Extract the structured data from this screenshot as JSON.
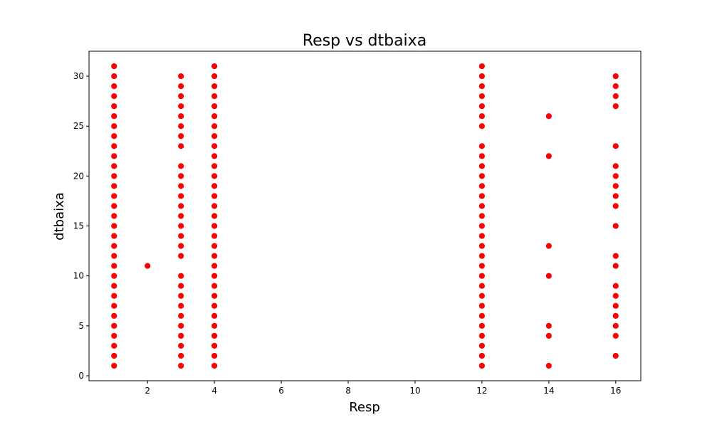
{
  "chart_data": {
    "type": "scatter",
    "title": "Resp vs dtbaixa",
    "xlabel": "Resp",
    "ylabel": "dtbaixa",
    "xlim": [
      0.25,
      16.75
    ],
    "ylim": [
      -0.5,
      32.5
    ],
    "x_ticks": [
      2,
      4,
      6,
      8,
      10,
      12,
      14,
      16
    ],
    "y_ticks": [
      0,
      5,
      10,
      15,
      20,
      25,
      30
    ],
    "grid": false,
    "legend": "none",
    "marker_color": "#ff0000",
    "marker_edge_color": "#ffffff",
    "points": [
      {
        "x": 1,
        "y": 1
      },
      {
        "x": 1,
        "y": 2
      },
      {
        "x": 1,
        "y": 3
      },
      {
        "x": 1,
        "y": 4
      },
      {
        "x": 1,
        "y": 5
      },
      {
        "x": 1,
        "y": 6
      },
      {
        "x": 1,
        "y": 7
      },
      {
        "x": 1,
        "y": 8
      },
      {
        "x": 1,
        "y": 9
      },
      {
        "x": 1,
        "y": 10
      },
      {
        "x": 1,
        "y": 11
      },
      {
        "x": 1,
        "y": 12
      },
      {
        "x": 1,
        "y": 13
      },
      {
        "x": 1,
        "y": 14
      },
      {
        "x": 1,
        "y": 15
      },
      {
        "x": 1,
        "y": 16
      },
      {
        "x": 1,
        "y": 17
      },
      {
        "x": 1,
        "y": 18
      },
      {
        "x": 1,
        "y": 19
      },
      {
        "x": 1,
        "y": 20
      },
      {
        "x": 1,
        "y": 21
      },
      {
        "x": 1,
        "y": 22
      },
      {
        "x": 1,
        "y": 23
      },
      {
        "x": 1,
        "y": 24
      },
      {
        "x": 1,
        "y": 25
      },
      {
        "x": 1,
        "y": 26
      },
      {
        "x": 1,
        "y": 27
      },
      {
        "x": 1,
        "y": 28
      },
      {
        "x": 1,
        "y": 29
      },
      {
        "x": 1,
        "y": 30
      },
      {
        "x": 1,
        "y": 31
      },
      {
        "x": 2,
        "y": 11
      },
      {
        "x": 3,
        "y": 1
      },
      {
        "x": 3,
        "y": 2
      },
      {
        "x": 3,
        "y": 3
      },
      {
        "x": 3,
        "y": 4
      },
      {
        "x": 3,
        "y": 5
      },
      {
        "x": 3,
        "y": 6
      },
      {
        "x": 3,
        "y": 7
      },
      {
        "x": 3,
        "y": 8
      },
      {
        "x": 3,
        "y": 9
      },
      {
        "x": 3,
        "y": 10
      },
      {
        "x": 3,
        "y": 12
      },
      {
        "x": 3,
        "y": 13
      },
      {
        "x": 3,
        "y": 14
      },
      {
        "x": 3,
        "y": 15
      },
      {
        "x": 3,
        "y": 16
      },
      {
        "x": 3,
        "y": 17
      },
      {
        "x": 3,
        "y": 18
      },
      {
        "x": 3,
        "y": 19
      },
      {
        "x": 3,
        "y": 20
      },
      {
        "x": 3,
        "y": 21
      },
      {
        "x": 3,
        "y": 23
      },
      {
        "x": 3,
        "y": 24
      },
      {
        "x": 3,
        "y": 25
      },
      {
        "x": 3,
        "y": 26
      },
      {
        "x": 3,
        "y": 27
      },
      {
        "x": 3,
        "y": 28
      },
      {
        "x": 3,
        "y": 29
      },
      {
        "x": 3,
        "y": 30
      },
      {
        "x": 4,
        "y": 1
      },
      {
        "x": 4,
        "y": 2
      },
      {
        "x": 4,
        "y": 3
      },
      {
        "x": 4,
        "y": 4
      },
      {
        "x": 4,
        "y": 5
      },
      {
        "x": 4,
        "y": 6
      },
      {
        "x": 4,
        "y": 7
      },
      {
        "x": 4,
        "y": 8
      },
      {
        "x": 4,
        "y": 9
      },
      {
        "x": 4,
        "y": 10
      },
      {
        "x": 4,
        "y": 11
      },
      {
        "x": 4,
        "y": 12
      },
      {
        "x": 4,
        "y": 13
      },
      {
        "x": 4,
        "y": 14
      },
      {
        "x": 4,
        "y": 15
      },
      {
        "x": 4,
        "y": 16
      },
      {
        "x": 4,
        "y": 17
      },
      {
        "x": 4,
        "y": 18
      },
      {
        "x": 4,
        "y": 19
      },
      {
        "x": 4,
        "y": 20
      },
      {
        "x": 4,
        "y": 21
      },
      {
        "x": 4,
        "y": 22
      },
      {
        "x": 4,
        "y": 23
      },
      {
        "x": 4,
        "y": 24
      },
      {
        "x": 4,
        "y": 25
      },
      {
        "x": 4,
        "y": 26
      },
      {
        "x": 4,
        "y": 27
      },
      {
        "x": 4,
        "y": 28
      },
      {
        "x": 4,
        "y": 29
      },
      {
        "x": 4,
        "y": 30
      },
      {
        "x": 4,
        "y": 31
      },
      {
        "x": 12,
        "y": 1
      },
      {
        "x": 12,
        "y": 2
      },
      {
        "x": 12,
        "y": 3
      },
      {
        "x": 12,
        "y": 4
      },
      {
        "x": 12,
        "y": 5
      },
      {
        "x": 12,
        "y": 6
      },
      {
        "x": 12,
        "y": 7
      },
      {
        "x": 12,
        "y": 8
      },
      {
        "x": 12,
        "y": 9
      },
      {
        "x": 12,
        "y": 10
      },
      {
        "x": 12,
        "y": 11
      },
      {
        "x": 12,
        "y": 12
      },
      {
        "x": 12,
        "y": 13
      },
      {
        "x": 12,
        "y": 14
      },
      {
        "x": 12,
        "y": 15
      },
      {
        "x": 12,
        "y": 16
      },
      {
        "x": 12,
        "y": 17
      },
      {
        "x": 12,
        "y": 18
      },
      {
        "x": 12,
        "y": 19
      },
      {
        "x": 12,
        "y": 20
      },
      {
        "x": 12,
        "y": 21
      },
      {
        "x": 12,
        "y": 22
      },
      {
        "x": 12,
        "y": 23
      },
      {
        "x": 12,
        "y": 25
      },
      {
        "x": 12,
        "y": 26
      },
      {
        "x": 12,
        "y": 27
      },
      {
        "x": 12,
        "y": 28
      },
      {
        "x": 12,
        "y": 29
      },
      {
        "x": 12,
        "y": 30
      },
      {
        "x": 12,
        "y": 31
      },
      {
        "x": 14,
        "y": 1
      },
      {
        "x": 14,
        "y": 4
      },
      {
        "x": 14,
        "y": 5
      },
      {
        "x": 14,
        "y": 10
      },
      {
        "x": 14,
        "y": 13
      },
      {
        "x": 14,
        "y": 22
      },
      {
        "x": 14,
        "y": 26
      },
      {
        "x": 16,
        "y": 2
      },
      {
        "x": 16,
        "y": 4
      },
      {
        "x": 16,
        "y": 5
      },
      {
        "x": 16,
        "y": 6
      },
      {
        "x": 16,
        "y": 7
      },
      {
        "x": 16,
        "y": 8
      },
      {
        "x": 16,
        "y": 9
      },
      {
        "x": 16,
        "y": 11
      },
      {
        "x": 16,
        "y": 12
      },
      {
        "x": 16,
        "y": 15
      },
      {
        "x": 16,
        "y": 17
      },
      {
        "x": 16,
        "y": 18
      },
      {
        "x": 16,
        "y": 19
      },
      {
        "x": 16,
        "y": 20
      },
      {
        "x": 16,
        "y": 21
      },
      {
        "x": 16,
        "y": 23
      },
      {
        "x": 16,
        "y": 27
      },
      {
        "x": 16,
        "y": 28
      },
      {
        "x": 16,
        "y": 29
      },
      {
        "x": 16,
        "y": 30
      }
    ]
  }
}
